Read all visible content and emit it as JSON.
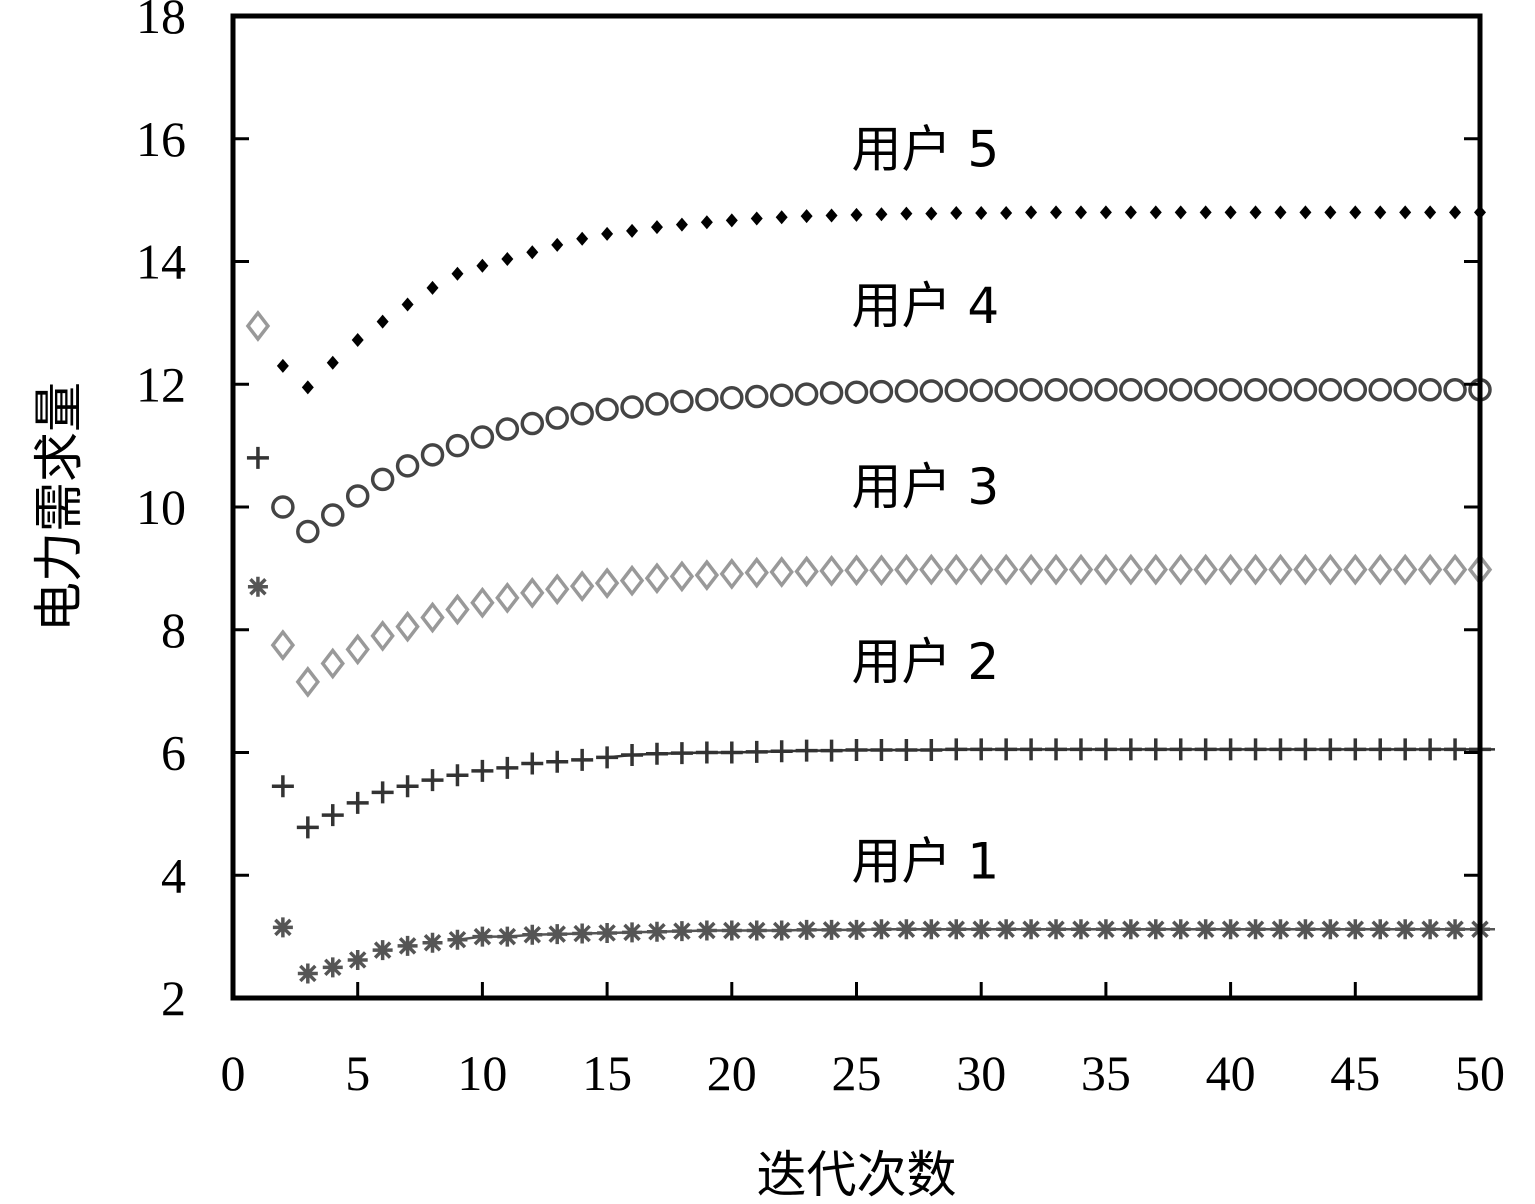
{
  "chart_data": {
    "type": "scatter",
    "xlabel": "迭代次数",
    "ylabel": "电力需求量",
    "xlim": [
      0,
      50
    ],
    "ylim": [
      2,
      18
    ],
    "xticks": [
      0,
      5,
      10,
      15,
      20,
      25,
      30,
      35,
      40,
      45,
      50
    ],
    "yticks": [
      2,
      4,
      6,
      8,
      10,
      12,
      14,
      16,
      18
    ],
    "grid": false,
    "series": [
      {
        "name": "用户 1",
        "marker": "asterisk",
        "color": "#555555",
        "x": [
          1,
          2,
          3,
          4,
          5,
          6,
          7,
          8,
          9,
          10,
          11,
          12,
          13,
          14,
          15,
          16,
          17,
          18,
          19,
          20,
          21,
          22,
          23,
          24,
          25,
          26,
          27,
          28,
          29,
          30,
          31,
          32,
          33,
          34,
          35,
          36,
          37,
          38,
          39,
          40,
          41,
          42,
          43,
          44,
          45,
          46,
          47,
          48,
          49,
          50
        ],
        "y": [
          8.7,
          3.15,
          2.4,
          2.5,
          2.62,
          2.78,
          2.85,
          2.9,
          2.95,
          3.0,
          3.0,
          3.03,
          3.04,
          3.05,
          3.06,
          3.07,
          3.08,
          3.09,
          3.1,
          3.1,
          3.1,
          3.1,
          3.11,
          3.11,
          3.11,
          3.12,
          3.12,
          3.12,
          3.12,
          3.12,
          3.12,
          3.12,
          3.12,
          3.12,
          3.12,
          3.12,
          3.12,
          3.12,
          3.12,
          3.12,
          3.12,
          3.12,
          3.12,
          3.12,
          3.12,
          3.12,
          3.12,
          3.12,
          3.12,
          3.12
        ]
      },
      {
        "name": "用户 2",
        "marker": "plus",
        "color": "#333333",
        "x": [
          1,
          2,
          3,
          4,
          5,
          6,
          7,
          8,
          9,
          10,
          11,
          12,
          13,
          14,
          15,
          16,
          17,
          18,
          19,
          20,
          21,
          22,
          23,
          24,
          25,
          26,
          27,
          28,
          29,
          30,
          31,
          32,
          33,
          34,
          35,
          36,
          37,
          38,
          39,
          40,
          41,
          42,
          43,
          44,
          45,
          46,
          47,
          48,
          49,
          50
        ],
        "y": [
          10.8,
          5.45,
          4.78,
          4.98,
          5.18,
          5.35,
          5.45,
          5.55,
          5.63,
          5.7,
          5.75,
          5.82,
          5.85,
          5.88,
          5.92,
          5.96,
          5.98,
          5.99,
          6.0,
          6.0,
          6.01,
          6.02,
          6.03,
          6.03,
          6.04,
          6.04,
          6.04,
          6.04,
          6.05,
          6.05,
          6.05,
          6.05,
          6.05,
          6.05,
          6.05,
          6.05,
          6.05,
          6.05,
          6.05,
          6.05,
          6.05,
          6.05,
          6.05,
          6.05,
          6.05,
          6.05,
          6.05,
          6.05,
          6.05,
          6.05
        ]
      },
      {
        "name": "用户 3",
        "marker": "diamond",
        "color": "#999999",
        "x": [
          1,
          2,
          3,
          4,
          5,
          6,
          7,
          8,
          9,
          10,
          11,
          12,
          13,
          14,
          15,
          16,
          17,
          18,
          19,
          20,
          21,
          22,
          23,
          24,
          25,
          26,
          27,
          28,
          29,
          30,
          31,
          32,
          33,
          34,
          35,
          36,
          37,
          38,
          39,
          40,
          41,
          42,
          43,
          44,
          45,
          46,
          47,
          48,
          49,
          50
        ],
        "y": [
          12.95,
          7.75,
          7.15,
          7.45,
          7.68,
          7.9,
          8.05,
          8.2,
          8.33,
          8.44,
          8.52,
          8.6,
          8.66,
          8.71,
          8.76,
          8.8,
          8.84,
          8.87,
          8.89,
          8.91,
          8.93,
          8.94,
          8.95,
          8.96,
          8.97,
          8.97,
          8.98,
          8.98,
          8.98,
          8.98,
          8.98,
          8.98,
          8.98,
          8.98,
          8.98,
          8.98,
          8.98,
          8.98,
          8.98,
          8.98,
          8.98,
          8.98,
          8.98,
          8.98,
          8.98,
          8.98,
          8.98,
          8.98,
          8.98,
          8.98
        ]
      },
      {
        "name": "用户 4",
        "marker": "circle",
        "color": "#444444",
        "x": [
          2,
          3,
          4,
          5,
          6,
          7,
          8,
          9,
          10,
          11,
          12,
          13,
          14,
          15,
          16,
          17,
          18,
          19,
          20,
          21,
          22,
          23,
          24,
          25,
          26,
          27,
          28,
          29,
          30,
          31,
          32,
          33,
          34,
          35,
          36,
          37,
          38,
          39,
          40,
          41,
          42,
          43,
          44,
          45,
          46,
          47,
          48,
          49,
          50
        ],
        "y": [
          10.0,
          9.6,
          9.87,
          10.18,
          10.45,
          10.67,
          10.85,
          11.0,
          11.14,
          11.27,
          11.36,
          11.45,
          11.52,
          11.59,
          11.63,
          11.68,
          11.72,
          11.75,
          11.78,
          11.8,
          11.82,
          11.84,
          11.86,
          11.87,
          11.88,
          11.89,
          11.89,
          11.9,
          11.9,
          11.9,
          11.91,
          11.91,
          11.91,
          11.91,
          11.91,
          11.91,
          11.91,
          11.91,
          11.91,
          11.91,
          11.91,
          11.91,
          11.91,
          11.91,
          11.91,
          11.91,
          11.91,
          11.91,
          11.91
        ]
      },
      {
        "name": "用户 5",
        "marker": "filled-diamond",
        "color": "#000000",
        "x": [
          2,
          3,
          4,
          5,
          6,
          7,
          8,
          9,
          10,
          11,
          12,
          13,
          14,
          15,
          16,
          17,
          18,
          19,
          20,
          21,
          22,
          23,
          24,
          25,
          26,
          27,
          28,
          29,
          30,
          31,
          32,
          33,
          34,
          35,
          36,
          37,
          38,
          39,
          40,
          41,
          42,
          43,
          44,
          45,
          46,
          47,
          48,
          49,
          50
        ],
        "y": [
          12.3,
          11.95,
          12.35,
          12.72,
          13.02,
          13.3,
          13.57,
          13.8,
          13.93,
          14.04,
          14.15,
          14.27,
          14.37,
          14.45,
          14.5,
          14.56,
          14.6,
          14.64,
          14.67,
          14.7,
          14.72,
          14.74,
          14.75,
          14.76,
          14.77,
          14.78,
          14.78,
          14.79,
          14.79,
          14.79,
          14.8,
          14.8,
          14.8,
          14.8,
          14.8,
          14.8,
          14.8,
          14.8,
          14.8,
          14.8,
          14.8,
          14.8,
          14.8,
          14.8,
          14.8,
          14.8,
          14.8,
          14.8,
          14.8
        ]
      }
    ],
    "series_labels": [
      {
        "text": "用户 5",
        "x": 24.8,
        "y": 15.55
      },
      {
        "text": "用户 4",
        "x": 24.8,
        "y": 13.0
      },
      {
        "text": "用户 3",
        "x": 24.8,
        "y": 10.05
      },
      {
        "text": "用户 2",
        "x": 24.8,
        "y": 7.2
      },
      {
        "text": "用户 1",
        "x": 24.8,
        "y": 3.95
      }
    ]
  }
}
